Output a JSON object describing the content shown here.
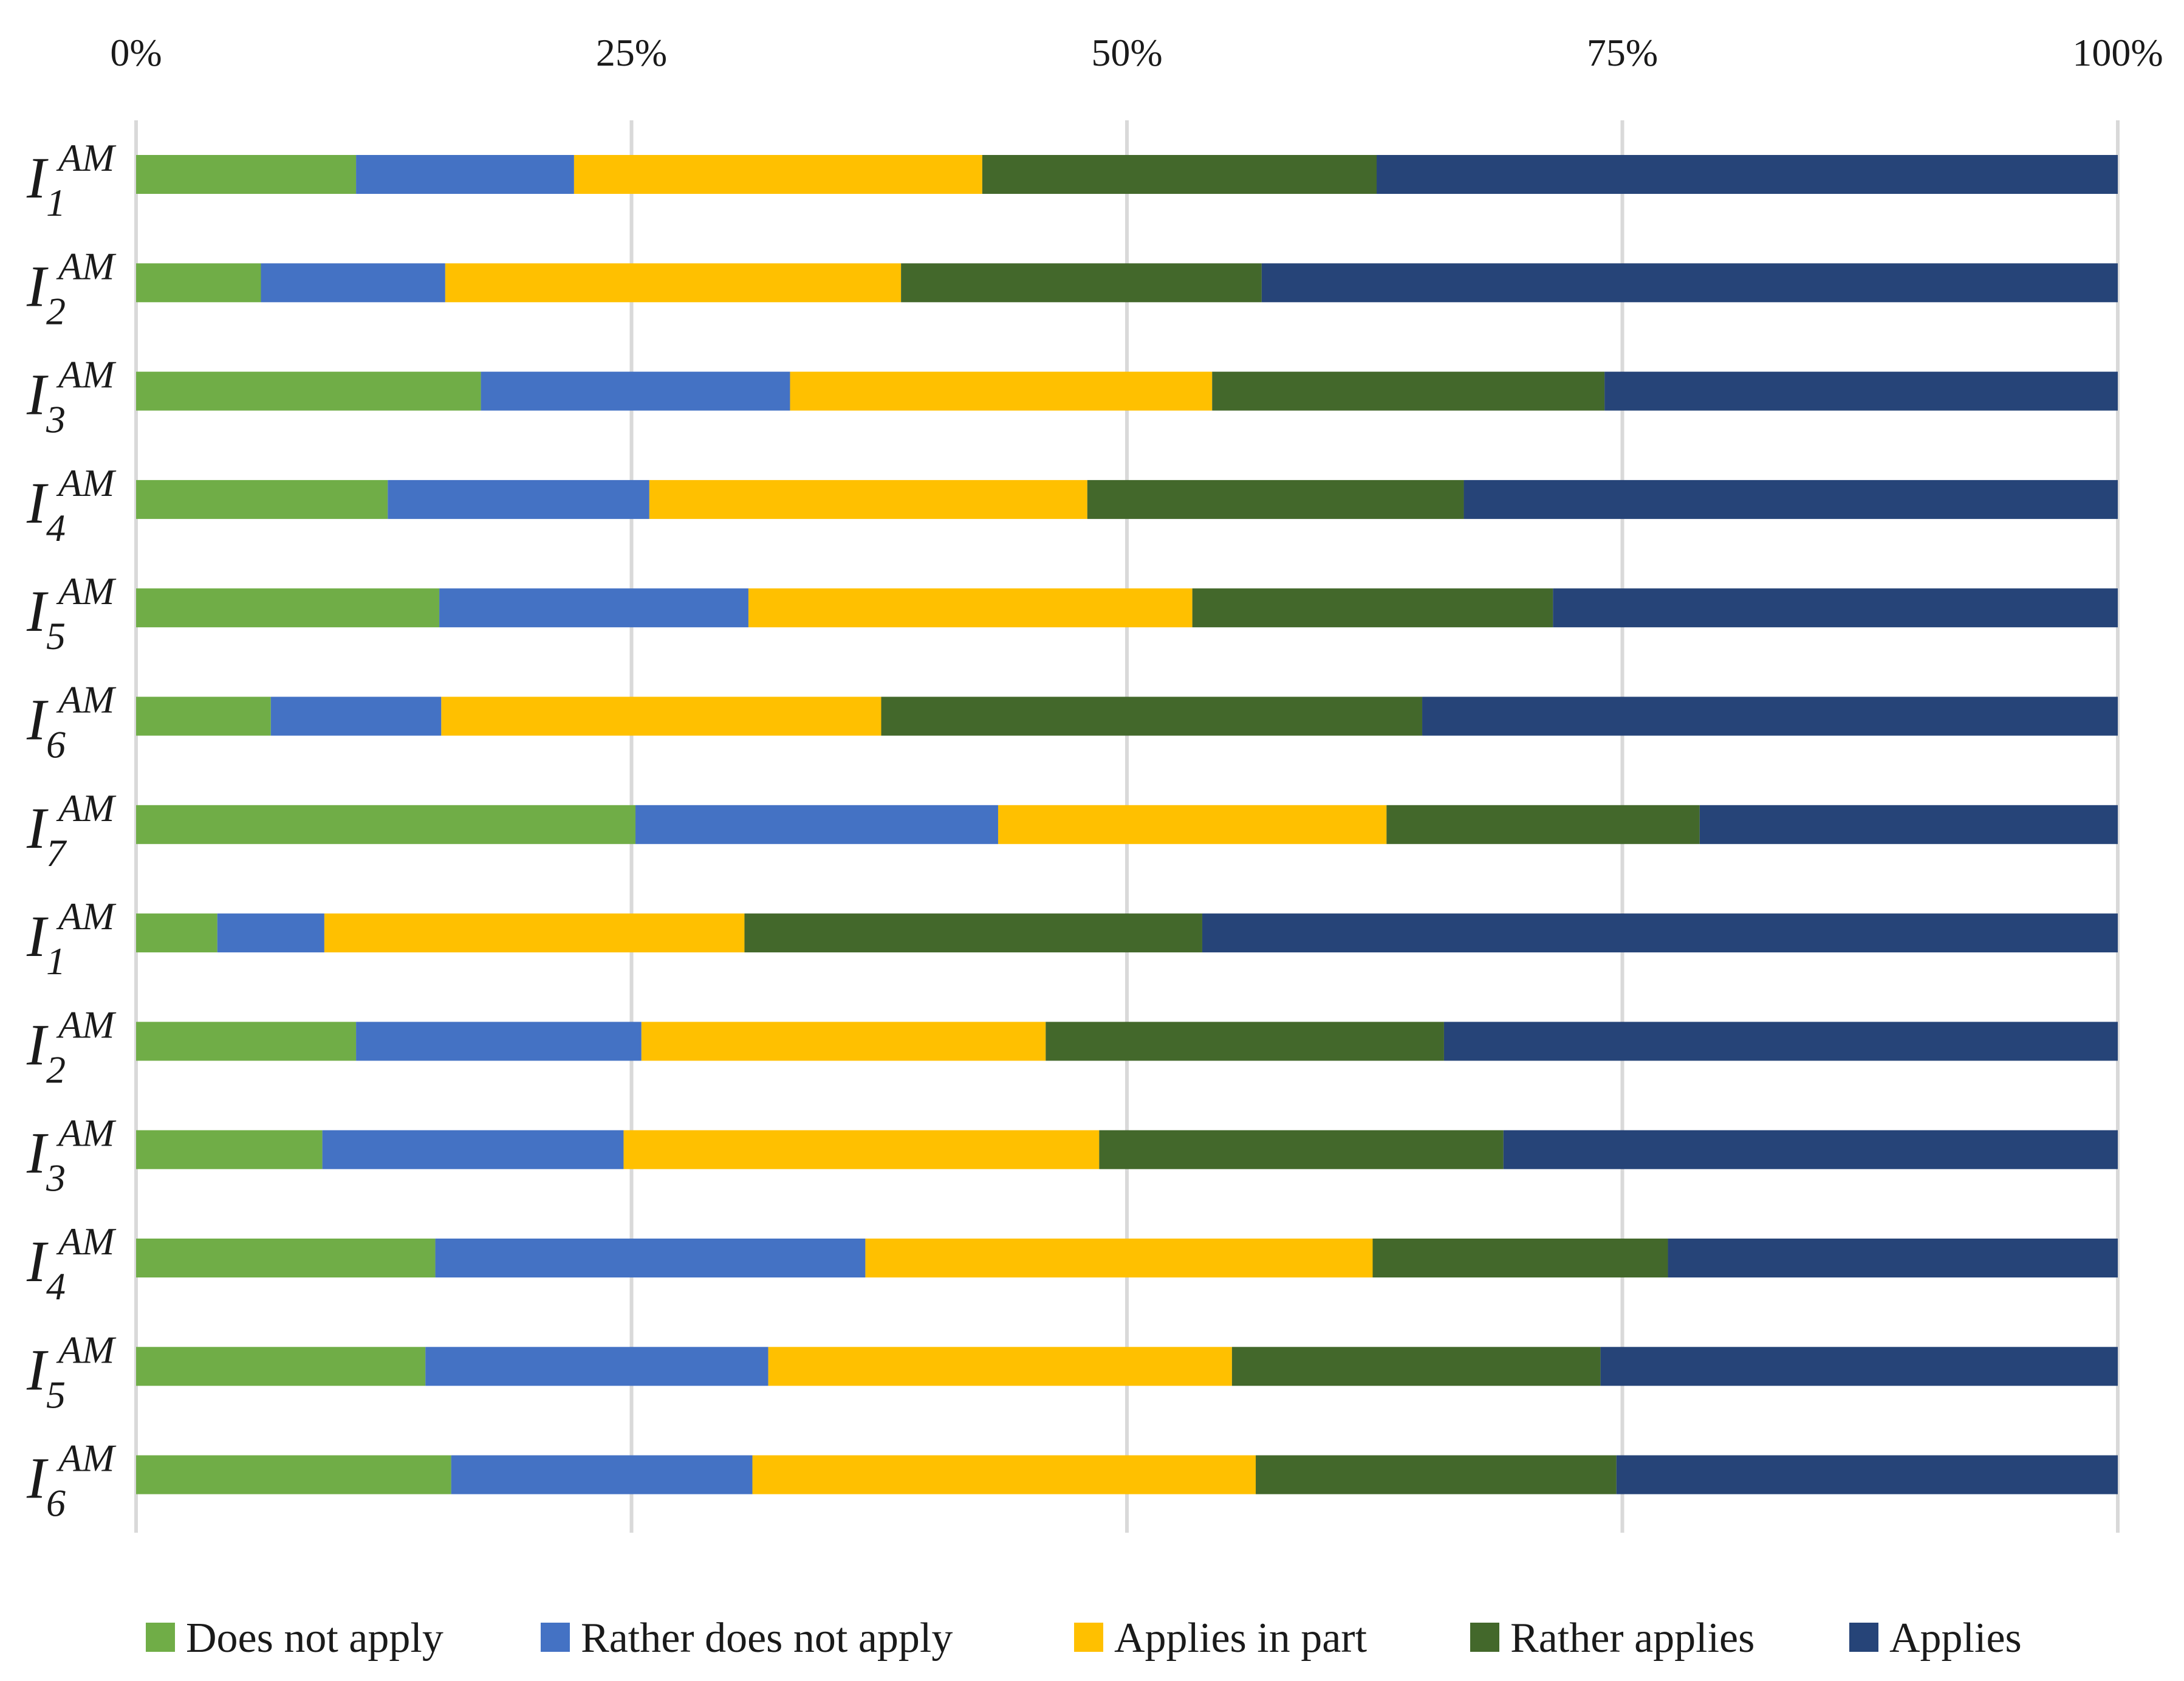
{
  "chart_data": {
    "type": "bar",
    "orientation": "horizontal",
    "stacked": "percent",
    "title": "",
    "xlabel": "",
    "ylabel": "",
    "xlim": [
      0,
      100
    ],
    "x_ticks": [
      "0%",
      "25%",
      "50%",
      "75%",
      "100%"
    ],
    "x_tick_values": [
      0,
      25,
      50,
      75,
      100
    ],
    "x_axis_position": "top",
    "grid": true,
    "legend_position": "bottom",
    "categories": [
      {
        "base": "I",
        "sub": "1",
        "sup": "AM"
      },
      {
        "base": "I",
        "sub": "2",
        "sup": "AM"
      },
      {
        "base": "I",
        "sub": "3",
        "sup": "AM"
      },
      {
        "base": "I",
        "sub": "4",
        "sup": "AM"
      },
      {
        "base": "I",
        "sub": "5",
        "sup": "AM"
      },
      {
        "base": "I",
        "sub": "6",
        "sup": "AM"
      },
      {
        "base": "I",
        "sub": "7",
        "sup": "AM"
      },
      {
        "base": "I",
        "sub": "1",
        "sup": "AM"
      },
      {
        "base": "I",
        "sub": "2",
        "sup": "AM"
      },
      {
        "base": "I",
        "sub": "3",
        "sup": "AM"
      },
      {
        "base": "I",
        "sub": "4",
        "sup": "AM"
      },
      {
        "base": "I",
        "sub": "5",
        "sup": "AM"
      },
      {
        "base": "I",
        "sub": "6",
        "sup": "AM"
      }
    ],
    "series": [
      {
        "name": "Does not apply",
        "color": "#70ad47",
        "values": [
          11.1,
          6.3,
          17.4,
          12.7,
          15.3,
          6.8,
          25.2,
          4.1,
          11.1,
          9.4,
          15.1,
          14.6,
          15.9
        ]
      },
      {
        "name": "Rather does not apply",
        "color": "#4472c4",
        "values": [
          11.0,
          9.3,
          15.6,
          13.2,
          15.6,
          8.6,
          18.3,
          5.4,
          14.4,
          15.2,
          21.7,
          17.3,
          15.2
        ]
      },
      {
        "name": "Applies in part",
        "color": "#ffc000",
        "values": [
          20.6,
          23.0,
          21.3,
          22.1,
          22.4,
          22.2,
          19.6,
          21.2,
          20.4,
          24.0,
          25.6,
          23.4,
          25.4
        ]
      },
      {
        "name": "Rather applies",
        "color": "#43682b",
        "values": [
          19.9,
          18.2,
          19.8,
          19.0,
          18.2,
          27.3,
          15.8,
          23.1,
          20.1,
          20.4,
          14.9,
          18.6,
          18.2
        ]
      },
      {
        "name": "Applies",
        "color": "#264478",
        "values": [
          37.4,
          43.2,
          25.9,
          33.0,
          28.5,
          35.1,
          21.1,
          46.2,
          34.0,
          31.0,
          22.7,
          26.1,
          25.3
        ]
      }
    ]
  }
}
